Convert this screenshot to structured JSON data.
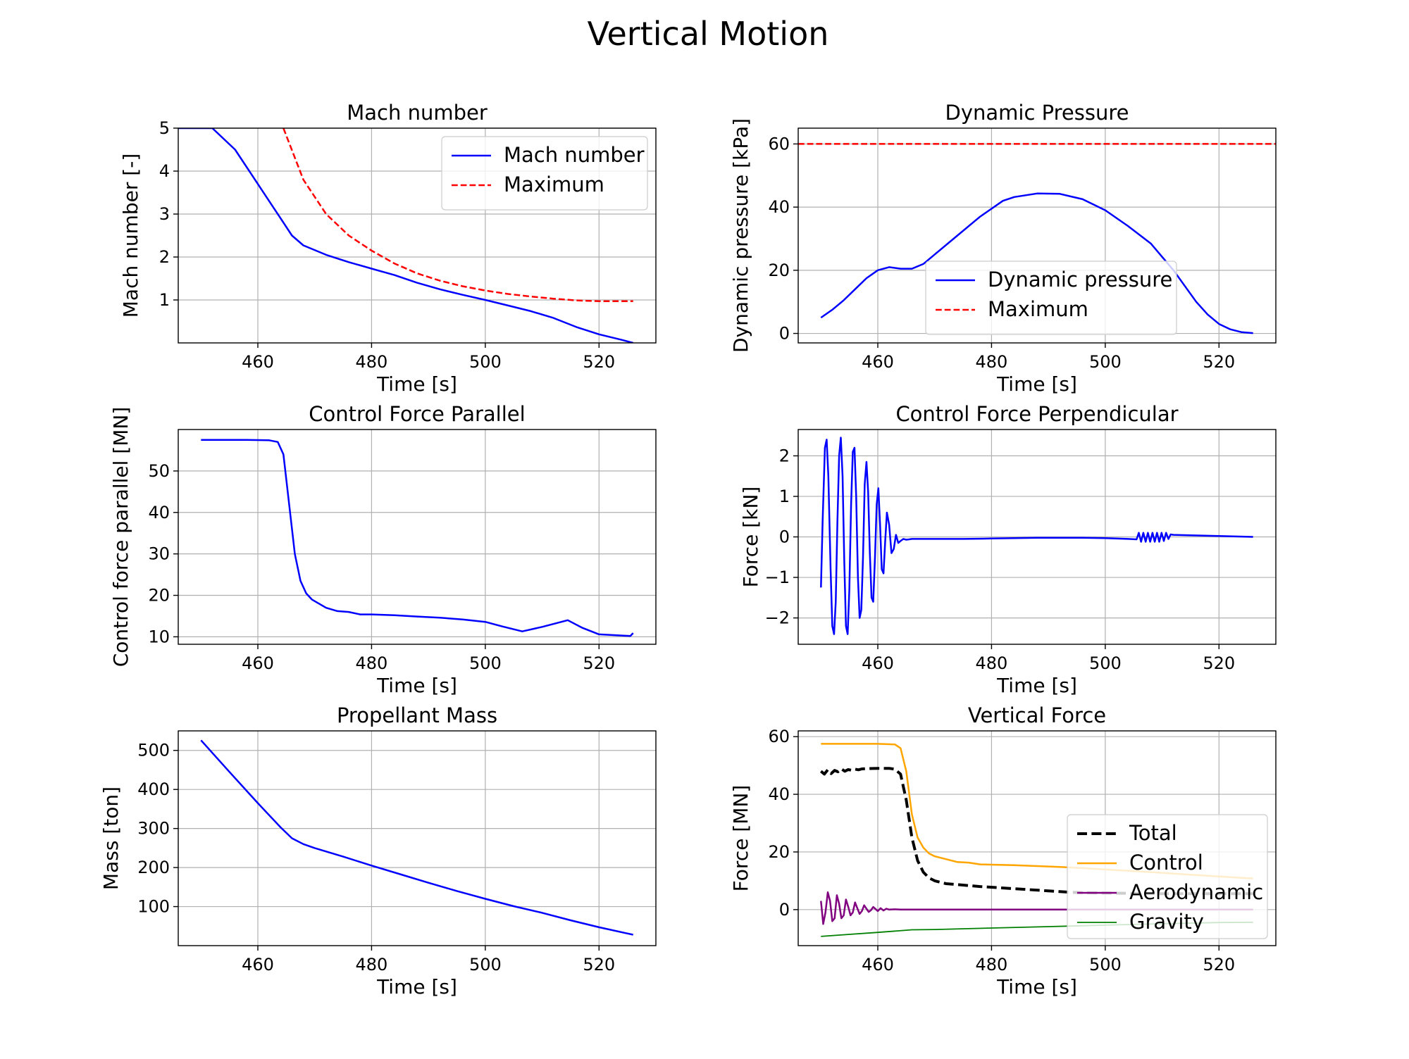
{
  "figure": {
    "title": "Vertical Motion"
  },
  "chart_data": [
    {
      "id": "mach",
      "type": "line",
      "title": "Mach number",
      "xlabel": "Time [s]",
      "ylabel": "Mach number [-]",
      "xlim": [
        446,
        530
      ],
      "ylim": [
        0,
        5
      ],
      "xticks": [
        460,
        480,
        500,
        520
      ],
      "yticks": [
        1,
        2,
        3,
        4,
        5
      ],
      "grid": true,
      "legend": "top-right",
      "series": [
        {
          "name": "Mach number",
          "color": "#0000ff",
          "dash": "solid",
          "width": 2.5,
          "x": [
            446,
            452,
            456,
            460,
            464,
            466,
            468,
            472,
            476,
            480,
            484,
            488,
            492,
            496,
            500,
            504,
            508,
            512,
            516,
            520,
            524,
            526
          ],
          "y": [
            5.0,
            5.0,
            4.5,
            3.7,
            2.9,
            2.5,
            2.27,
            2.05,
            1.88,
            1.73,
            1.58,
            1.4,
            1.25,
            1.12,
            1.0,
            0.87,
            0.74,
            0.58,
            0.37,
            0.2,
            0.07,
            0.0
          ]
        },
        {
          "name": "Maximum",
          "color": "#ff0000",
          "dash": "dashed",
          "width": 2.5,
          "x": [
            464.5,
            468,
            472,
            476,
            480,
            484,
            488,
            492,
            496,
            500,
            504,
            508,
            512,
            516,
            520,
            526
          ],
          "y": [
            5.0,
            3.8,
            3.0,
            2.5,
            2.15,
            1.85,
            1.62,
            1.45,
            1.32,
            1.22,
            1.14,
            1.08,
            1.03,
            0.99,
            0.97,
            0.97
          ]
        }
      ]
    },
    {
      "id": "dynpressure",
      "type": "line",
      "title": "Dynamic Pressure",
      "xlabel": "Time [s]",
      "ylabel": "Dynamic pressure [kPa]",
      "xlim": [
        446,
        530
      ],
      "ylim": [
        -3,
        65
      ],
      "xticks": [
        460,
        480,
        500,
        520
      ],
      "yticks": [
        0,
        20,
        40,
        60
      ],
      "grid": true,
      "legend": "lower-center",
      "series": [
        {
          "name": "Dynamic pressure",
          "color": "#0000ff",
          "dash": "solid",
          "width": 2.5,
          "x": [
            450,
            452,
            454,
            456,
            458,
            460,
            462,
            464,
            466,
            468,
            470,
            474,
            478,
            482,
            484,
            488,
            492,
            496,
            500,
            504,
            508,
            512,
            514,
            516,
            518,
            520,
            522,
            524,
            526
          ],
          "y": [
            5,
            7.5,
            10.5,
            14,
            17.5,
            20,
            21,
            20.5,
            20.5,
            22,
            25,
            31,
            37,
            42,
            43.2,
            44.3,
            44.2,
            42.5,
            39,
            34,
            28.5,
            20,
            15,
            10,
            6,
            3,
            1.3,
            0.4,
            0.1
          ]
        },
        {
          "name": "Maximum",
          "color": "#ff0000",
          "dash": "dashed",
          "width": 2.5,
          "x": [
            446,
            530
          ],
          "y": [
            60,
            60
          ]
        }
      ]
    },
    {
      "id": "cfparallel",
      "type": "line",
      "title": "Control Force Parallel",
      "xlabel": "Time [s]",
      "ylabel": "Control force parallel [MN]",
      "xlim": [
        446,
        530
      ],
      "ylim": [
        8.2,
        60
      ],
      "xticks": [
        460,
        480,
        500,
        520
      ],
      "yticks": [
        10,
        20,
        30,
        40,
        50
      ],
      "grid": true,
      "legend": "none",
      "series": [
        {
          "name": "",
          "color": "#0000ff",
          "dash": "solid",
          "width": 2.5,
          "x": [
            450,
            454,
            458,
            462,
            463.5,
            464.5,
            465.5,
            466.5,
            467.5,
            468.5,
            469.5,
            472,
            474,
            476,
            478,
            480,
            484,
            488,
            492,
            496,
            500,
            503,
            506.5,
            510,
            514.5,
            517,
            520,
            525.5,
            526
          ],
          "y": [
            57.5,
            57.5,
            57.5,
            57.4,
            57.0,
            54.0,
            42.0,
            30.0,
            23.5,
            20.5,
            19.0,
            17.0,
            16.2,
            16.0,
            15.4,
            15.4,
            15.2,
            14.9,
            14.6,
            14.2,
            13.6,
            12.5,
            11.3,
            12.4,
            14.0,
            12.2,
            10.6,
            10.2,
            10.9
          ]
        }
      ]
    },
    {
      "id": "cfperp",
      "type": "line",
      "title": "Control Force Perpendicular",
      "xlabel": "Time [s]",
      "ylabel": "Force [kN]",
      "xlim": [
        446,
        530
      ],
      "ylim": [
        -2.65,
        2.65
      ],
      "xticks": [
        460,
        480,
        500,
        520
      ],
      "yticks": [
        -2,
        -1,
        0,
        1,
        2
      ],
      "grid": true,
      "legend": "none",
      "series": [
        {
          "name": "",
          "color": "#0000ff",
          "dash": "solid",
          "width": 2.5,
          "x": [
            450,
            450.3,
            450.7,
            451.0,
            451.3,
            451.7,
            452.0,
            452.3,
            452.6,
            452.9,
            453.2,
            453.5,
            453.8,
            454.1,
            454.4,
            454.7,
            455.0,
            455.3,
            455.6,
            455.9,
            456.2,
            456.5,
            456.8,
            457.1,
            457.4,
            457.7,
            458.0,
            458.3,
            458.6,
            458.9,
            459.2,
            459.5,
            459.8,
            460.1,
            460.4,
            460.7,
            461.0,
            461.3,
            461.6,
            462.0,
            462.4,
            462.8,
            463.2,
            463.6,
            464.0,
            464.5,
            465.0,
            465.5,
            466.0,
            470,
            475,
            480,
            484,
            488,
            492,
            496,
            500,
            504,
            505.5,
            505.9,
            506.3,
            506.7,
            507.1,
            507.5,
            507.9,
            508.3,
            508.7,
            509.1,
            509.5,
            509.9,
            510.3,
            510.7,
            511.1,
            511.5,
            512,
            515,
            520,
            526
          ],
          "y": [
            -1.25,
            0.4,
            2.2,
            2.4,
            1.5,
            -0.8,
            -2.2,
            -2.4,
            -1.6,
            0.4,
            2.0,
            2.45,
            1.5,
            -0.6,
            -2.2,
            -2.4,
            -1.3,
            0.8,
            2.1,
            2.2,
            1.0,
            -1.0,
            -2.0,
            -1.8,
            -0.5,
            1.3,
            1.85,
            1.1,
            -0.4,
            -1.5,
            -1.6,
            -0.5,
            0.8,
            1.2,
            0.3,
            -0.8,
            -0.9,
            -0.1,
            0.6,
            0.3,
            -0.4,
            -0.3,
            0.05,
            -0.15,
            -0.1,
            -0.05,
            -0.07,
            -0.06,
            -0.05,
            -0.05,
            -0.05,
            -0.04,
            -0.03,
            -0.02,
            -0.02,
            -0.02,
            -0.03,
            -0.05,
            -0.06,
            0.1,
            -0.12,
            0.1,
            -0.12,
            0.1,
            -0.12,
            0.1,
            -0.12,
            0.1,
            -0.12,
            0.1,
            -0.1,
            0.1,
            -0.05,
            0.06,
            0.05,
            0.04,
            0.02,
            0.0
          ]
        }
      ]
    },
    {
      "id": "propmass",
      "type": "line",
      "title": "Propellant Mass",
      "xlabel": "Time [s]",
      "ylabel": "Mass [ton]",
      "xlim": [
        446,
        530
      ],
      "ylim": [
        0,
        550
      ],
      "xticks": [
        460,
        480,
        500,
        520
      ],
      "yticks": [
        100,
        200,
        300,
        400,
        500
      ],
      "grid": true,
      "legend": "none",
      "series": [
        {
          "name": "",
          "color": "#0000ff",
          "dash": "solid",
          "width": 2.5,
          "x": [
            450,
            455,
            460,
            464,
            466,
            468,
            470,
            475,
            480,
            485,
            490,
            495,
            500,
            505,
            510,
            515,
            520,
            526
          ],
          "y": [
            526,
            445,
            365,
            303,
            275,
            260,
            250,
            228,
            205,
            183,
            161,
            140,
            120,
            101,
            84,
            65,
            47,
            28
          ]
        }
      ]
    },
    {
      "id": "vertforce",
      "type": "line",
      "title": "Vertical Force",
      "xlabel": "Time [s]",
      "ylabel": "Force [MN]",
      "xlim": [
        446,
        530
      ],
      "ylim": [
        -12.5,
        62
      ],
      "xticks": [
        460,
        480,
        500,
        520
      ],
      "yticks": [
        0,
        20,
        40,
        60
      ],
      "grid": true,
      "legend": "lower-right",
      "series": [
        {
          "name": "Total",
          "color": "#000000",
          "dash": "dashed",
          "width": 4,
          "x": [
            450,
            450.6,
            451.2,
            451.8,
            452.4,
            453,
            453.6,
            454.2,
            454.8,
            455.4,
            456,
            456.6,
            457.2,
            458,
            460,
            462,
            463,
            464,
            465,
            466,
            467,
            468,
            469,
            470,
            472,
            475,
            478,
            482,
            486,
            490,
            494,
            498,
            502,
            506,
            510,
            514,
            518,
            522,
            526
          ],
          "y": [
            48,
            47,
            48.5,
            47.2,
            48.3,
            47.8,
            48.8,
            48,
            48.6,
            48.3,
            48.7,
            48.5,
            48.8,
            48.9,
            49,
            49,
            48.7,
            47,
            38,
            25,
            17,
            13,
            11,
            10,
            9,
            8.5,
            8,
            7.5,
            7,
            6.5,
            6,
            5.8,
            5.7,
            5.6,
            5.5,
            5.5,
            5.5,
            5.5,
            5.5
          ]
        },
        {
          "name": "Control",
          "color": "#ffa500",
          "dash": "solid",
          "width": 2.5,
          "x": [
            450,
            455,
            460,
            463,
            464,
            465,
            466,
            467,
            468,
            469,
            470,
            472,
            474,
            476,
            478,
            480,
            484,
            488,
            492,
            496,
            500,
            504,
            508,
            512,
            516,
            520,
            524,
            526
          ],
          "y": [
            57.5,
            57.5,
            57.5,
            57.3,
            56,
            48,
            33,
            25,
            21.5,
            19.5,
            18.5,
            17.5,
            16.5,
            16.3,
            15.7,
            15.6,
            15.4,
            15.1,
            14.8,
            14.4,
            13.9,
            13.5,
            13.0,
            12.5,
            12.0,
            11.5,
            11.0,
            10.8
          ]
        },
        {
          "name": "Aerodynamic",
          "color": "#800080",
          "dash": "solid",
          "width": 2.5,
          "x": [
            450,
            450.4,
            450.8,
            451.2,
            451.6,
            452,
            452.4,
            452.8,
            453.2,
            453.6,
            454,
            454.4,
            454.8,
            455.2,
            455.6,
            456,
            456.4,
            456.8,
            457.2,
            457.6,
            458,
            458.4,
            458.8,
            459.2,
            459.6,
            460,
            460.5,
            461,
            461.5,
            462,
            463,
            464,
            466,
            480,
            500,
            520,
            526
          ],
          "y": [
            3,
            -5,
            -1,
            6,
            3,
            -4,
            -3,
            5,
            2,
            -3,
            -2,
            3.5,
            1,
            -2,
            -1,
            2.5,
            0.5,
            -1.5,
            -0.5,
            1.5,
            0.3,
            -0.8,
            -0.2,
            0.9,
            0.2,
            -0.5,
            0.5,
            -0.3,
            0.3,
            0,
            0.1,
            0,
            0,
            0,
            0,
            0,
            0
          ]
        },
        {
          "name": "Gravity",
          "color": "#008000",
          "dash": "solid",
          "width": 1.8,
          "x": [
            450,
            455,
            460,
            466,
            470,
            480,
            490,
            500,
            510,
            520,
            526
          ],
          "y": [
            -9.3,
            -8.6,
            -7.9,
            -7.0,
            -6.9,
            -6.4,
            -5.9,
            -5.4,
            -4.9,
            -4.5,
            -4.4
          ]
        }
      ]
    }
  ]
}
